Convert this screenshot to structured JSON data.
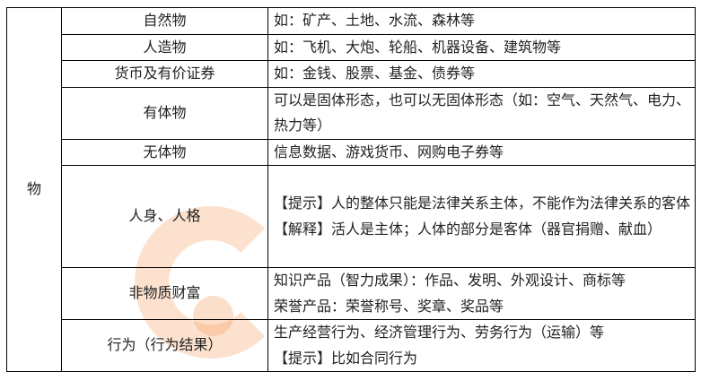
{
  "category": "物",
  "rows": [
    {
      "name": "自然物",
      "lines": [
        "如：矿产、土地、水流、森林等"
      ]
    },
    {
      "name": "人造物",
      "lines": [
        "如：飞机、大炮、轮船、机器设备、建筑物等"
      ]
    },
    {
      "name": "货币及有价证券",
      "lines": [
        "如：金钱、股票、基金、债券等"
      ]
    },
    {
      "name": "有体物",
      "lines": [
        "可以是固体形态，也可以无固体形态（如：空气、天然气、电力、热力等）"
      ]
    },
    {
      "name": "无体物",
      "lines": [
        "信息数据、游戏货币、网购电子券等"
      ]
    },
    {
      "name": "人身、人格",
      "lines": [
        "【提示】人的整体只能是法律关系主体，不能作为法律关系的客体",
        "【解释】活人是主体；人体的部分是客体（器官捐赠、献血）"
      ]
    },
    {
      "name": "非物质财富",
      "lines": [
        "知识产品（智力成果）：作品、发明、外观设计、商标等",
        "荣誉产品：荣誉称号、奖章、奖品等"
      ]
    },
    {
      "name": "行为（行为结果）",
      "lines": [
        "生产经营行为、经济管理行为、劳务行为（运输）等",
        "【提示】比如合同行为"
      ]
    }
  ]
}
